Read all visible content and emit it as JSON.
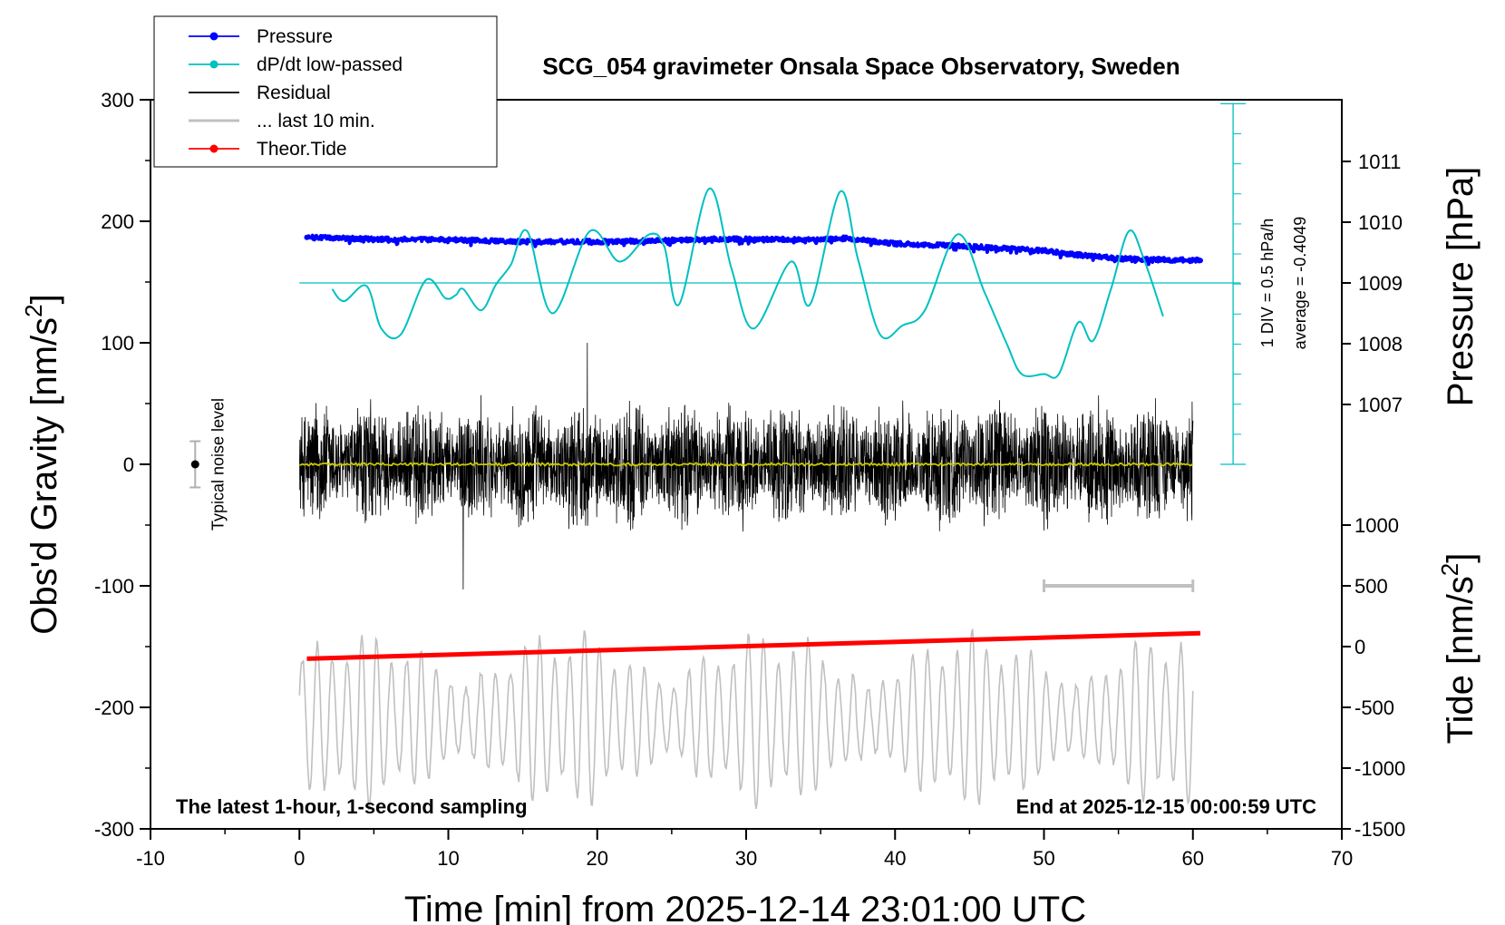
{
  "chart_data": {
    "type": "line",
    "title": "SCG_054 gravimeter Onsala Space Observatory, Sweden",
    "xlabel": "Time [min] from 2025-12-14 23:01:00 UTC",
    "xlim": [
      -10,
      70
    ],
    "xticks": [
      -10,
      0,
      10,
      20,
      30,
      40,
      50,
      60,
      70
    ],
    "left_axis": {
      "label_base": "Obs'd Gravity [nm/s",
      "label_sup": "2",
      "label_end": "]",
      "ylim": [
        -300,
        300
      ],
      "ticks": [
        -300,
        -200,
        -100,
        0,
        100,
        200,
        300
      ]
    },
    "pressure_axis": {
      "label": "Pressure [hPa]",
      "range": [
        1007,
        1011
      ],
      "ticks": [
        1007,
        1008,
        1009,
        1010,
        1011
      ]
    },
    "tide_axis": {
      "label_base": "Tide [nm/s",
      "label_sup": "2",
      "label_end": "]",
      "range": [
        -1500,
        1000
      ],
      "ticks": [
        -1500,
        -1000,
        -500,
        0,
        500,
        1000
      ]
    },
    "legend": [
      {
        "label": "Pressure",
        "color": "#0000ff",
        "marker": true
      },
      {
        "label": "dP/dt low-passed",
        "color": "#00c0c0",
        "marker": true
      },
      {
        "label": "Residual",
        "color": "#000000",
        "marker": false
      },
      {
        "label": "... last 10 min.",
        "color": "#c0c0c0",
        "marker": false
      },
      {
        "label": "Theor.Tide",
        "color": "#ff0000",
        "marker": true
      }
    ],
    "dpdt_scale": {
      "div_text": "1 DIV = 0.5 hPa/h",
      "avg_text": "average = -0.4049",
      "average": -0.4049
    },
    "noise": {
      "label": "Typical noise level",
      "x": -7,
      "half_range": 19
    },
    "last10_bracket": [
      50,
      60
    ],
    "footer_left": "The latest 1-hour, 1-second sampling",
    "footer_right": "End at 2025-12-15 00:00:59 UTC",
    "series": {
      "pressure": {
        "name": "Pressure",
        "unit": "hPa",
        "color": "#0000ff",
        "x": [
          0.5,
          5,
          10,
          15,
          20,
          25,
          27.5,
          30,
          35,
          36.5,
          40,
          45,
          50,
          52,
          55,
          60.5
        ],
        "values": [
          1009.75,
          1009.72,
          1009.71,
          1009.68,
          1009.68,
          1009.7,
          1009.72,
          1009.72,
          1009.71,
          1009.74,
          1009.65,
          1009.6,
          1009.53,
          1009.47,
          1009.4,
          1009.37
        ]
      },
      "dpdt": {
        "name": "dP/dt low-passed",
        "unit": "DIV",
        "color": "#00c0c0",
        "x": [
          2.2,
          3,
          4.5,
          5.5,
          6.8,
          8.5,
          9.8,
          10.5,
          11,
          12.2,
          13.2,
          14.2,
          15.3,
          17,
          19.5,
          21.5,
          23.5,
          24.5,
          25.5,
          27.5,
          29,
          30.5,
          33,
          34.3,
          36.3,
          37.5,
          39,
          40.5,
          42,
          44.2,
          46,
          47.5,
          48.5,
          50,
          51,
          52.3,
          53.3,
          54.5,
          55.7,
          56.7,
          58
        ],
        "values": [
          -0.2,
          -0.6,
          -0.1,
          -1.5,
          -1.7,
          0.1,
          -0.5,
          -0.4,
          -0.2,
          -0.9,
          -0.05,
          0.6,
          1.7,
          -1.0,
          1.7,
          0.7,
          1.6,
          1.2,
          -0.7,
          3.1,
          0.5,
          -1.5,
          0.7,
          -0.7,
          3.0,
          0.8,
          -1.7,
          -1.4,
          -0.9,
          1.6,
          -0.3,
          -2.0,
          -3.0,
          -3.0,
          -3.0,
          -1.3,
          -1.9,
          -0.2,
          1.7,
          0.8,
          -1.1
        ]
      },
      "residual": {
        "name": "Residual",
        "unit": "nm/s^2",
        "color": "#000000",
        "x_range": [
          0,
          60
        ],
        "envelope_amplitude": 60,
        "extremes": [
          100,
          -103
        ]
      },
      "running_mean": {
        "name": "mean residual",
        "color": "#c8c800",
        "level": 0
      },
      "last10": {
        "name": "... last 10 min.",
        "color": "#c0c0c0",
        "x_range": [
          0,
          60
        ],
        "level": -210,
        "amplitude_min": 25,
        "amplitude_max": 75
      },
      "tide": {
        "name": "Theor.Tide",
        "unit": "nm/s^2",
        "color": "#ff0000",
        "x": [
          0.5,
          60.5
        ],
        "values": [
          -100,
          110
        ]
      }
    }
  }
}
